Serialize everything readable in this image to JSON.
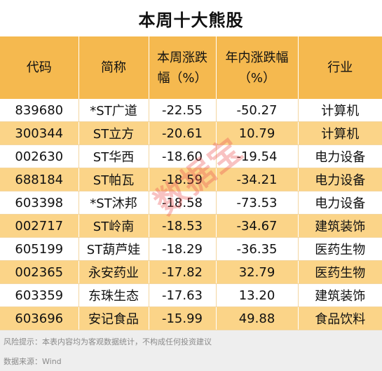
{
  "title": "本周十大熊股",
  "table": {
    "headers": [
      "代码",
      "简称",
      "本周涨跌幅（%）",
      "年内涨跌幅（%）",
      "行业"
    ],
    "rows": [
      [
        "839680",
        "*ST广道",
        "-22.55",
        "-50.27",
        "计算机"
      ],
      [
        "300344",
        "ST立方",
        "-20.61",
        "10.79",
        "计算机"
      ],
      [
        "002630",
        "ST华西",
        "-18.60",
        "-19.54",
        "电力设备"
      ],
      [
        "688184",
        "ST帕瓦",
        "-18.59",
        "-34.21",
        "电力设备"
      ],
      [
        "603398",
        "*ST沐邦",
        "-18.58",
        "-73.53",
        "电力设备"
      ],
      [
        "002717",
        "ST岭南",
        "-18.53",
        "-34.67",
        "建筑装饰"
      ],
      [
        "605199",
        "ST葫芦娃",
        "-18.29",
        "-36.35",
        "医药生物"
      ],
      [
        "002365",
        "永安药业",
        "-17.82",
        "32.79",
        "医药生物"
      ],
      [
        "603359",
        "东珠生态",
        "-17.63",
        "13.20",
        "建筑装饰"
      ],
      [
        "603696",
        "安记食品",
        "-15.99",
        "49.88",
        "食品饮料"
      ]
    ]
  },
  "watermark": "数据宝",
  "footer": {
    "risk": "风险提示：本表内容均为客观数据统计，不构成任何投资建议",
    "source": "数据来源：Wind"
  },
  "colors": {
    "header_bg": "#f5b94f",
    "alt_row_bg": "#fbd488",
    "footer_bg": "#eeeeee"
  }
}
